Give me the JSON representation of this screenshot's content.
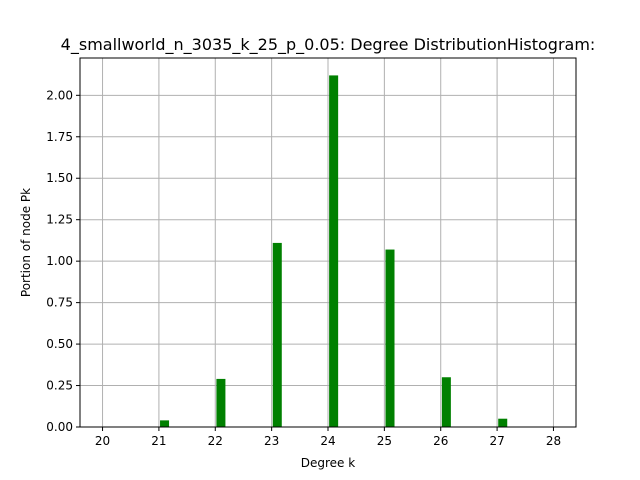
{
  "chart_data": {
    "type": "bar",
    "title": "4_smallworld_n_3035_k_25_p_0.05: Degree DistributionHistogram:",
    "xlabel": "Degree k",
    "ylabel": "Portion of node Pk",
    "x": [
      21.1,
      22.1,
      23.1,
      24.1,
      25.1,
      26.1,
      27.1
    ],
    "values": [
      0.04,
      0.29,
      1.11,
      2.12,
      1.07,
      0.3,
      0.05
    ],
    "bar_width": 0.16,
    "xlim": [
      19.6,
      28.4
    ],
    "ylim": [
      0,
      2.225
    ],
    "xticks": [
      20,
      21,
      22,
      23,
      24,
      25,
      26,
      27,
      28
    ],
    "xtick_labels": [
      "20",
      "21",
      "22",
      "23",
      "24",
      "25",
      "26",
      "27",
      "28"
    ],
    "yticks": [
      0,
      0.25,
      0.5,
      0.75,
      1.0,
      1.25,
      1.5,
      1.75,
      2.0
    ],
    "ytick_labels": [
      "0.00",
      "0.25",
      "0.50",
      "0.75",
      "1.00",
      "1.25",
      "1.50",
      "1.75",
      "2.00"
    ],
    "grid": true,
    "bar_color": "#008000"
  }
}
